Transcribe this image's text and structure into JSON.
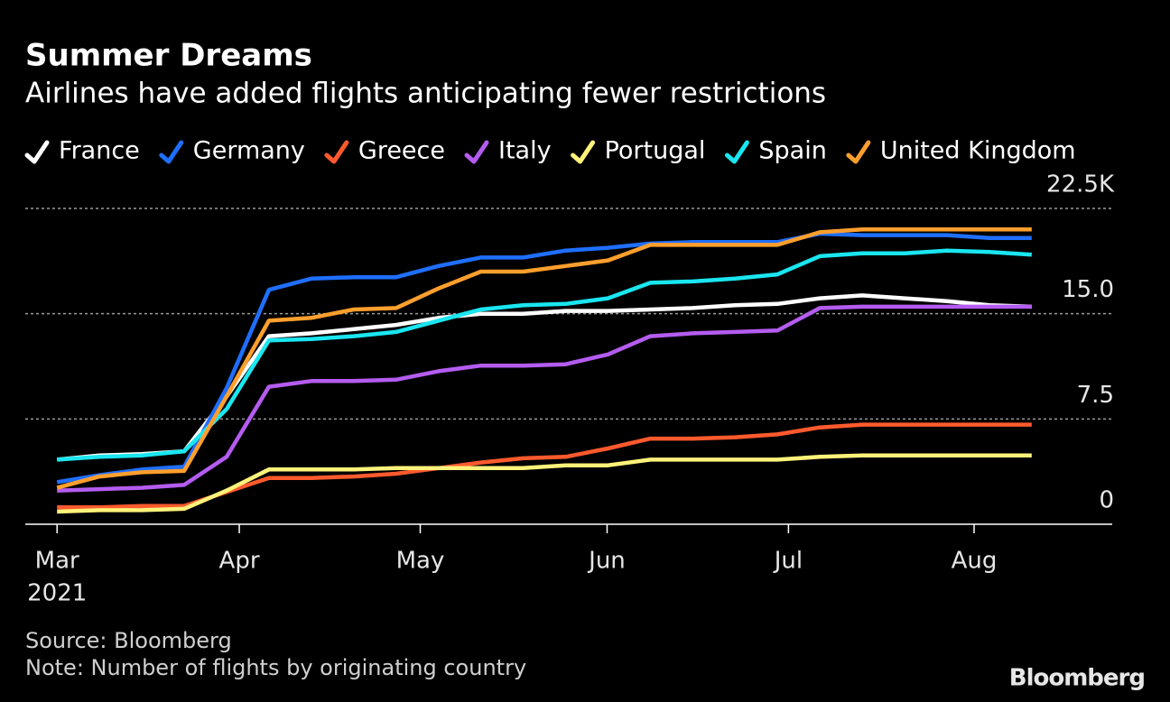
{
  "chart_data": {
    "type": "line",
    "title": "Summer Dreams",
    "subtitle": "Airlines have added flights anticipating fewer restrictions",
    "source": "Source: Bloomberg",
    "note": "Note: Number of flights by originating country",
    "brand": "Bloomberg",
    "year_label": "2021",
    "x": [
      0,
      1,
      2,
      3,
      4,
      5,
      6,
      7,
      8,
      9,
      10,
      11,
      12,
      13,
      14,
      15,
      16,
      17,
      18,
      19,
      20,
      21,
      22,
      23
    ],
    "xlim": [
      -0.75,
      24.9
    ],
    "xticks": [
      {
        "value": 0,
        "label": "Mar"
      },
      {
        "value": 4.3,
        "label": "Apr"
      },
      {
        "value": 8.57,
        "label": "May"
      },
      {
        "value": 12.98,
        "label": "Jun"
      },
      {
        "value": 17.26,
        "label": "Jul"
      },
      {
        "value": 21.64,
        "label": "Aug"
      }
    ],
    "ylim": [
      0,
      22.5
    ],
    "yticks": [
      0,
      7.5,
      {
        "value": 15,
        "label": "15.0"
      },
      {
        "value": 22.5,
        "label": "22.5K"
      }
    ],
    "grid": true,
    "legend": "top-left",
    "series": [
      {
        "name": "France",
        "color": "#ffffff",
        "values": [
          4.6,
          4.9,
          5.0,
          5.2,
          9.1,
          13.4,
          13.6,
          13.9,
          14.2,
          14.7,
          15.0,
          15.0,
          15.2,
          15.2,
          15.3,
          15.4,
          15.6,
          15.7,
          16.1,
          16.3,
          16.1,
          15.9,
          15.6,
          15.5
        ]
      },
      {
        "name": "Germany",
        "color": "#1f6fff",
        "values": [
          3.0,
          3.5,
          3.9,
          4.1,
          9.7,
          16.7,
          17.5,
          17.6,
          17.6,
          18.4,
          19.0,
          19.0,
          19.5,
          19.7,
          20.0,
          20.1,
          20.1,
          20.1,
          20.7,
          20.6,
          20.6,
          20.6,
          20.4,
          20.4
        ]
      },
      {
        "name": "Greece",
        "color": "#ff5a2d",
        "values": [
          1.2,
          1.2,
          1.3,
          1.3,
          2.3,
          3.3,
          3.3,
          3.4,
          3.6,
          4.0,
          4.4,
          4.7,
          4.8,
          5.4,
          6.1,
          6.1,
          6.2,
          6.4,
          6.9,
          7.1,
          7.1,
          7.1,
          7.1,
          7.1
        ]
      },
      {
        "name": "Italy",
        "color": "#b45cf0",
        "values": [
          2.4,
          2.5,
          2.6,
          2.8,
          4.8,
          9.8,
          10.2,
          10.2,
          10.3,
          10.9,
          11.3,
          11.3,
          11.4,
          12.1,
          13.4,
          13.6,
          13.7,
          13.8,
          15.4,
          15.5,
          15.5,
          15.5,
          15.5,
          15.5
        ]
      },
      {
        "name": "Portugal",
        "color": "#fff27a",
        "values": [
          0.9,
          1.0,
          1.0,
          1.1,
          2.4,
          3.9,
          3.9,
          3.9,
          4.0,
          4.0,
          4.0,
          4.0,
          4.2,
          4.2,
          4.6,
          4.6,
          4.6,
          4.6,
          4.8,
          4.9,
          4.9,
          4.9,
          4.9,
          4.9
        ]
      },
      {
        "name": "Spain",
        "color": "#19e6f0",
        "values": [
          4.6,
          4.8,
          4.9,
          5.2,
          8.2,
          13.1,
          13.2,
          13.4,
          13.7,
          14.5,
          15.3,
          15.6,
          15.7,
          16.1,
          17.2,
          17.3,
          17.5,
          17.8,
          19.1,
          19.3,
          19.3,
          19.5,
          19.4,
          19.2
        ]
      },
      {
        "name": "United Kingdom",
        "color": "#ff9f2d",
        "values": [
          2.6,
          3.4,
          3.7,
          3.8,
          9.1,
          14.5,
          14.7,
          15.3,
          15.4,
          16.8,
          18.0,
          18.0,
          18.4,
          18.8,
          19.9,
          19.9,
          19.9,
          19.9,
          20.8,
          21.0,
          21.0,
          21.0,
          21.0,
          21.0
        ]
      }
    ]
  }
}
